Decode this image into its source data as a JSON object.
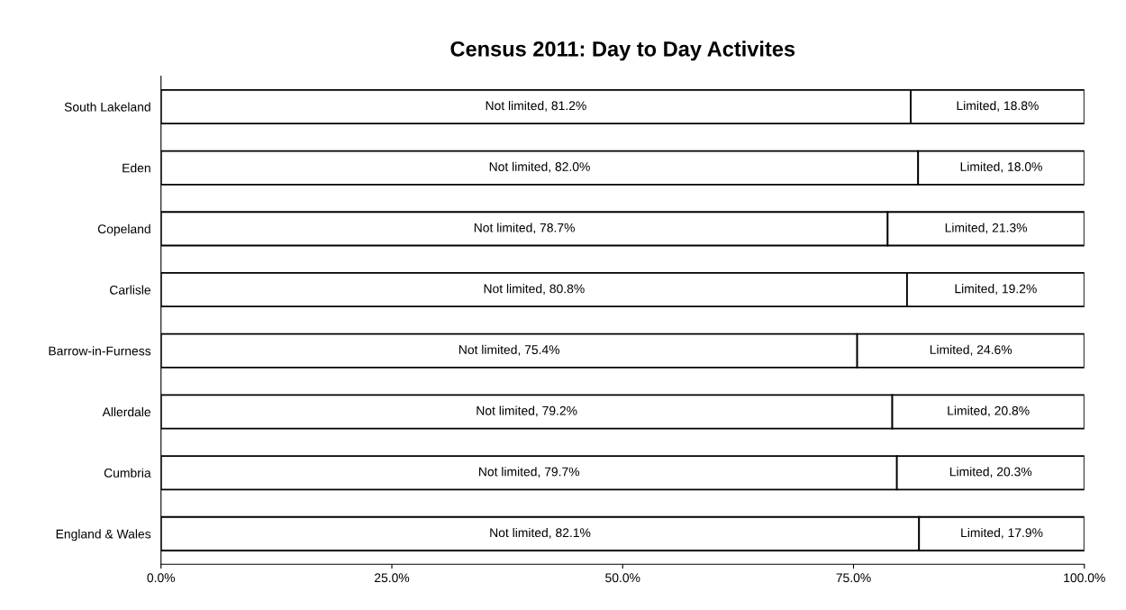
{
  "chart_data": {
    "type": "bar",
    "orientation": "horizontal",
    "stacked": true,
    "title": "Census 2011: Day to Day Activites",
    "categories": [
      "South Lakeland",
      "Eden",
      "Copeland",
      "Carlisle",
      "Barrow-in-Furness",
      "Allerdale",
      "Cumbria",
      "England & Wales"
    ],
    "series": [
      {
        "color": "#ffffff",
        "values": [
          81.2,
          82.0,
          78.7,
          80.8,
          75.4,
          79.2,
          79.7,
          82.1
        ],
        "value_labels": [
          "Not limited, 81.2%",
          "Not limited, 82.0%",
          "Not limited, 78.7%",
          "Not limited, 80.8%",
          "Not limited, 75.4%",
          "Not limited, 79.2%",
          "Not limited, 79.7%",
          "Not limited, 82.1%"
        ]
      },
      {
        "color": "#ffffff",
        "values": [
          18.8,
          18.0,
          21.3,
          19.2,
          24.6,
          20.8,
          20.3,
          17.9
        ],
        "value_labels": [
          "Limited, 18.8%",
          "Limited, 18.0%",
          "Limited, 21.3%",
          "Limited, 19.2%",
          "Limited, 24.6%",
          "Limited, 20.8%",
          "Limited, 20.3%",
          "Limited, 17.9%"
        ]
      }
    ],
    "xlim": [
      0,
      100
    ],
    "xticks": [
      {
        "value": 0,
        "label": "0.0%"
      },
      {
        "value": 25,
        "label": "25.0%"
      },
      {
        "value": 50,
        "label": "50.0%"
      },
      {
        "value": 75,
        "label": "75.0%"
      },
      {
        "value": 100,
        "label": "100.0%"
      }
    ],
    "grid": false,
    "legend": false
  }
}
